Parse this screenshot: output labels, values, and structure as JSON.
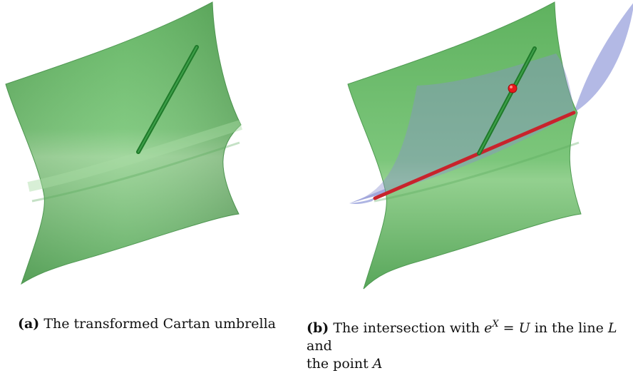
{
  "figure_a": {
    "label": "(a)",
    "caption": "The transformed Cartan umbrella"
  },
  "figure_b": {
    "label": "(b)",
    "caption_part1": "The intersection with",
    "math_e": "e",
    "math_X": "X",
    "math_eq": "=",
    "math_U": "U",
    "caption_part2": "in the line",
    "math_L": "L",
    "caption_part3": "and",
    "caption_part4": "the point",
    "math_A": "A"
  },
  "colors": {
    "surface_green": "#6ec06e",
    "surface_green_dark": "#4e9c52",
    "plane_blue": "#9aa2dc",
    "stick_green": "#1f7a2a",
    "line_red": "#c8232c",
    "point_red": "#e8181c"
  }
}
